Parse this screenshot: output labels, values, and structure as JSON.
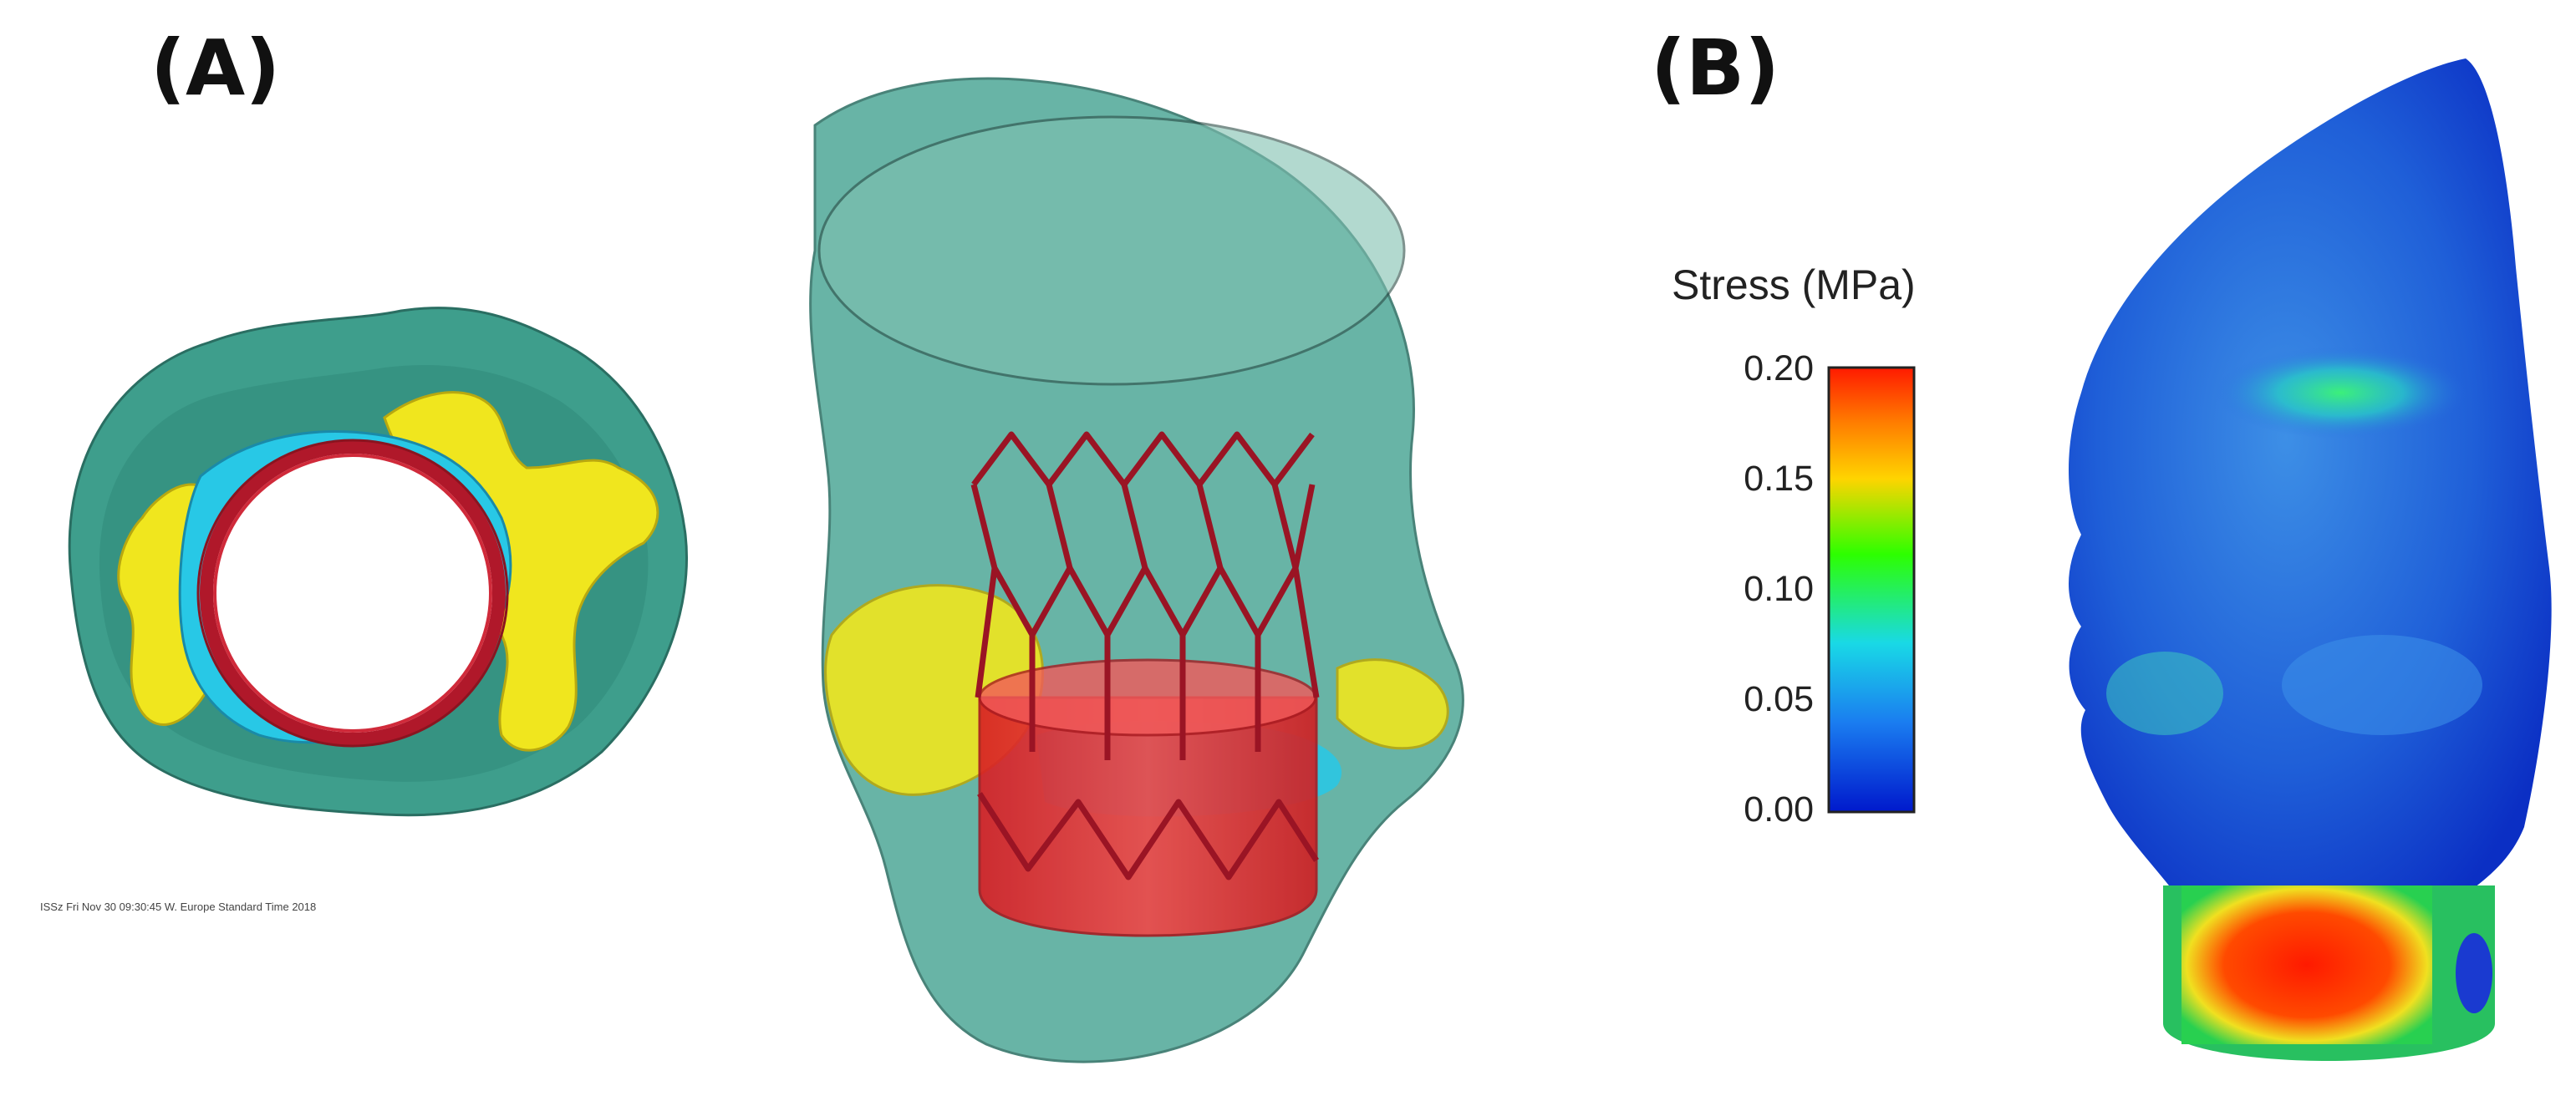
{
  "panels": {
    "a_label": "(A)",
    "b_label": "(B)"
  },
  "footer_text": "ISSz  Fri Nov 30 09:30:45 W. Europe Standard Time 2018",
  "legend": {
    "title": "Stress (MPa)",
    "ticks": [
      "0.20",
      "0.15",
      "0.10",
      "0.05",
      "0.00"
    ],
    "colors": [
      "#ff1a00",
      "#ffd400",
      "#2dff00",
      "#19d9e6",
      "#0019cc"
    ]
  },
  "colors": {
    "tissue": "#3e9e8c",
    "calcification": "#f0e61e",
    "stent": "#b0182a",
    "skirt": "#e62828",
    "leaflet": "#28c8e6"
  },
  "icons": [
    "aortic-root-top-view-render",
    "aortic-root-side-view-render",
    "stress-contour-render"
  ]
}
